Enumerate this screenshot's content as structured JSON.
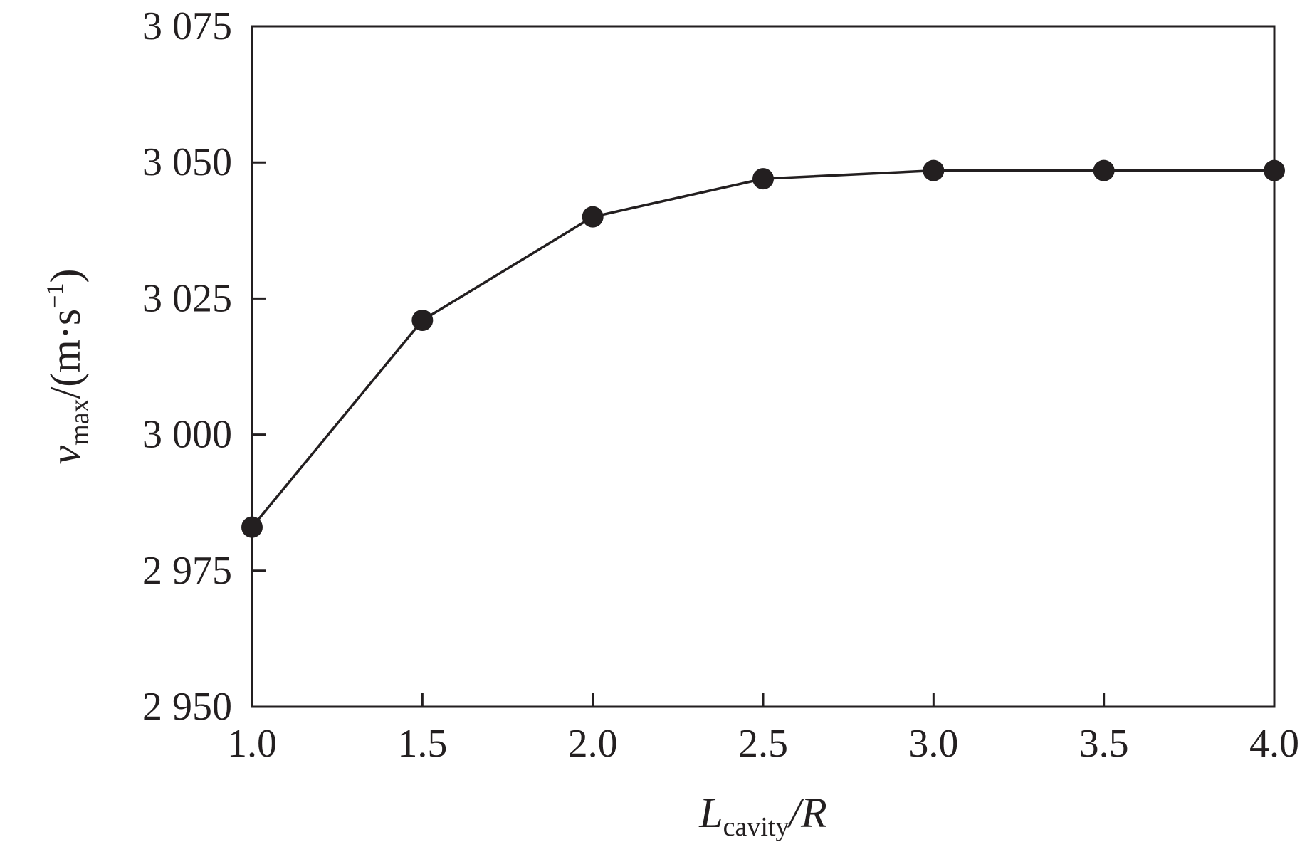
{
  "chart_data": {
    "type": "line",
    "title": "",
    "x": [
      1.0,
      1.5,
      2.0,
      2.5,
      3.0,
      3.5,
      4.0
    ],
    "series": [
      {
        "values": [
          2983,
          3021,
          3040,
          3047,
          3048.5,
          3048.5,
          3048.5
        ]
      }
    ],
    "xlim": [
      1.0,
      4.0
    ],
    "ylim": [
      2950,
      3075
    ],
    "xticks": [
      1.0,
      1.5,
      2.0,
      2.5,
      3.0,
      3.5,
      4.0
    ],
    "xtick_labels": [
      "1.0",
      "1.5",
      "2.0",
      "2.5",
      "3.0",
      "3.5",
      "4.0"
    ],
    "yticks": [
      2950,
      2975,
      3000,
      3025,
      3050,
      3075
    ],
    "ytick_labels": [
      "2 950",
      "2 975",
      "3 000",
      "3 025",
      "3 050",
      "3 075"
    ],
    "xlabel": {
      "main": "L",
      "sub": "cavity",
      "rest": "/R"
    },
    "ylabel": {
      "main": "v",
      "sub": "max",
      "rest": "/(m·s",
      "sup": "−1",
      "close": ")"
    },
    "grid": false,
    "legend": "none",
    "line_color": "#231f20",
    "marker_color": "#231f20"
  }
}
